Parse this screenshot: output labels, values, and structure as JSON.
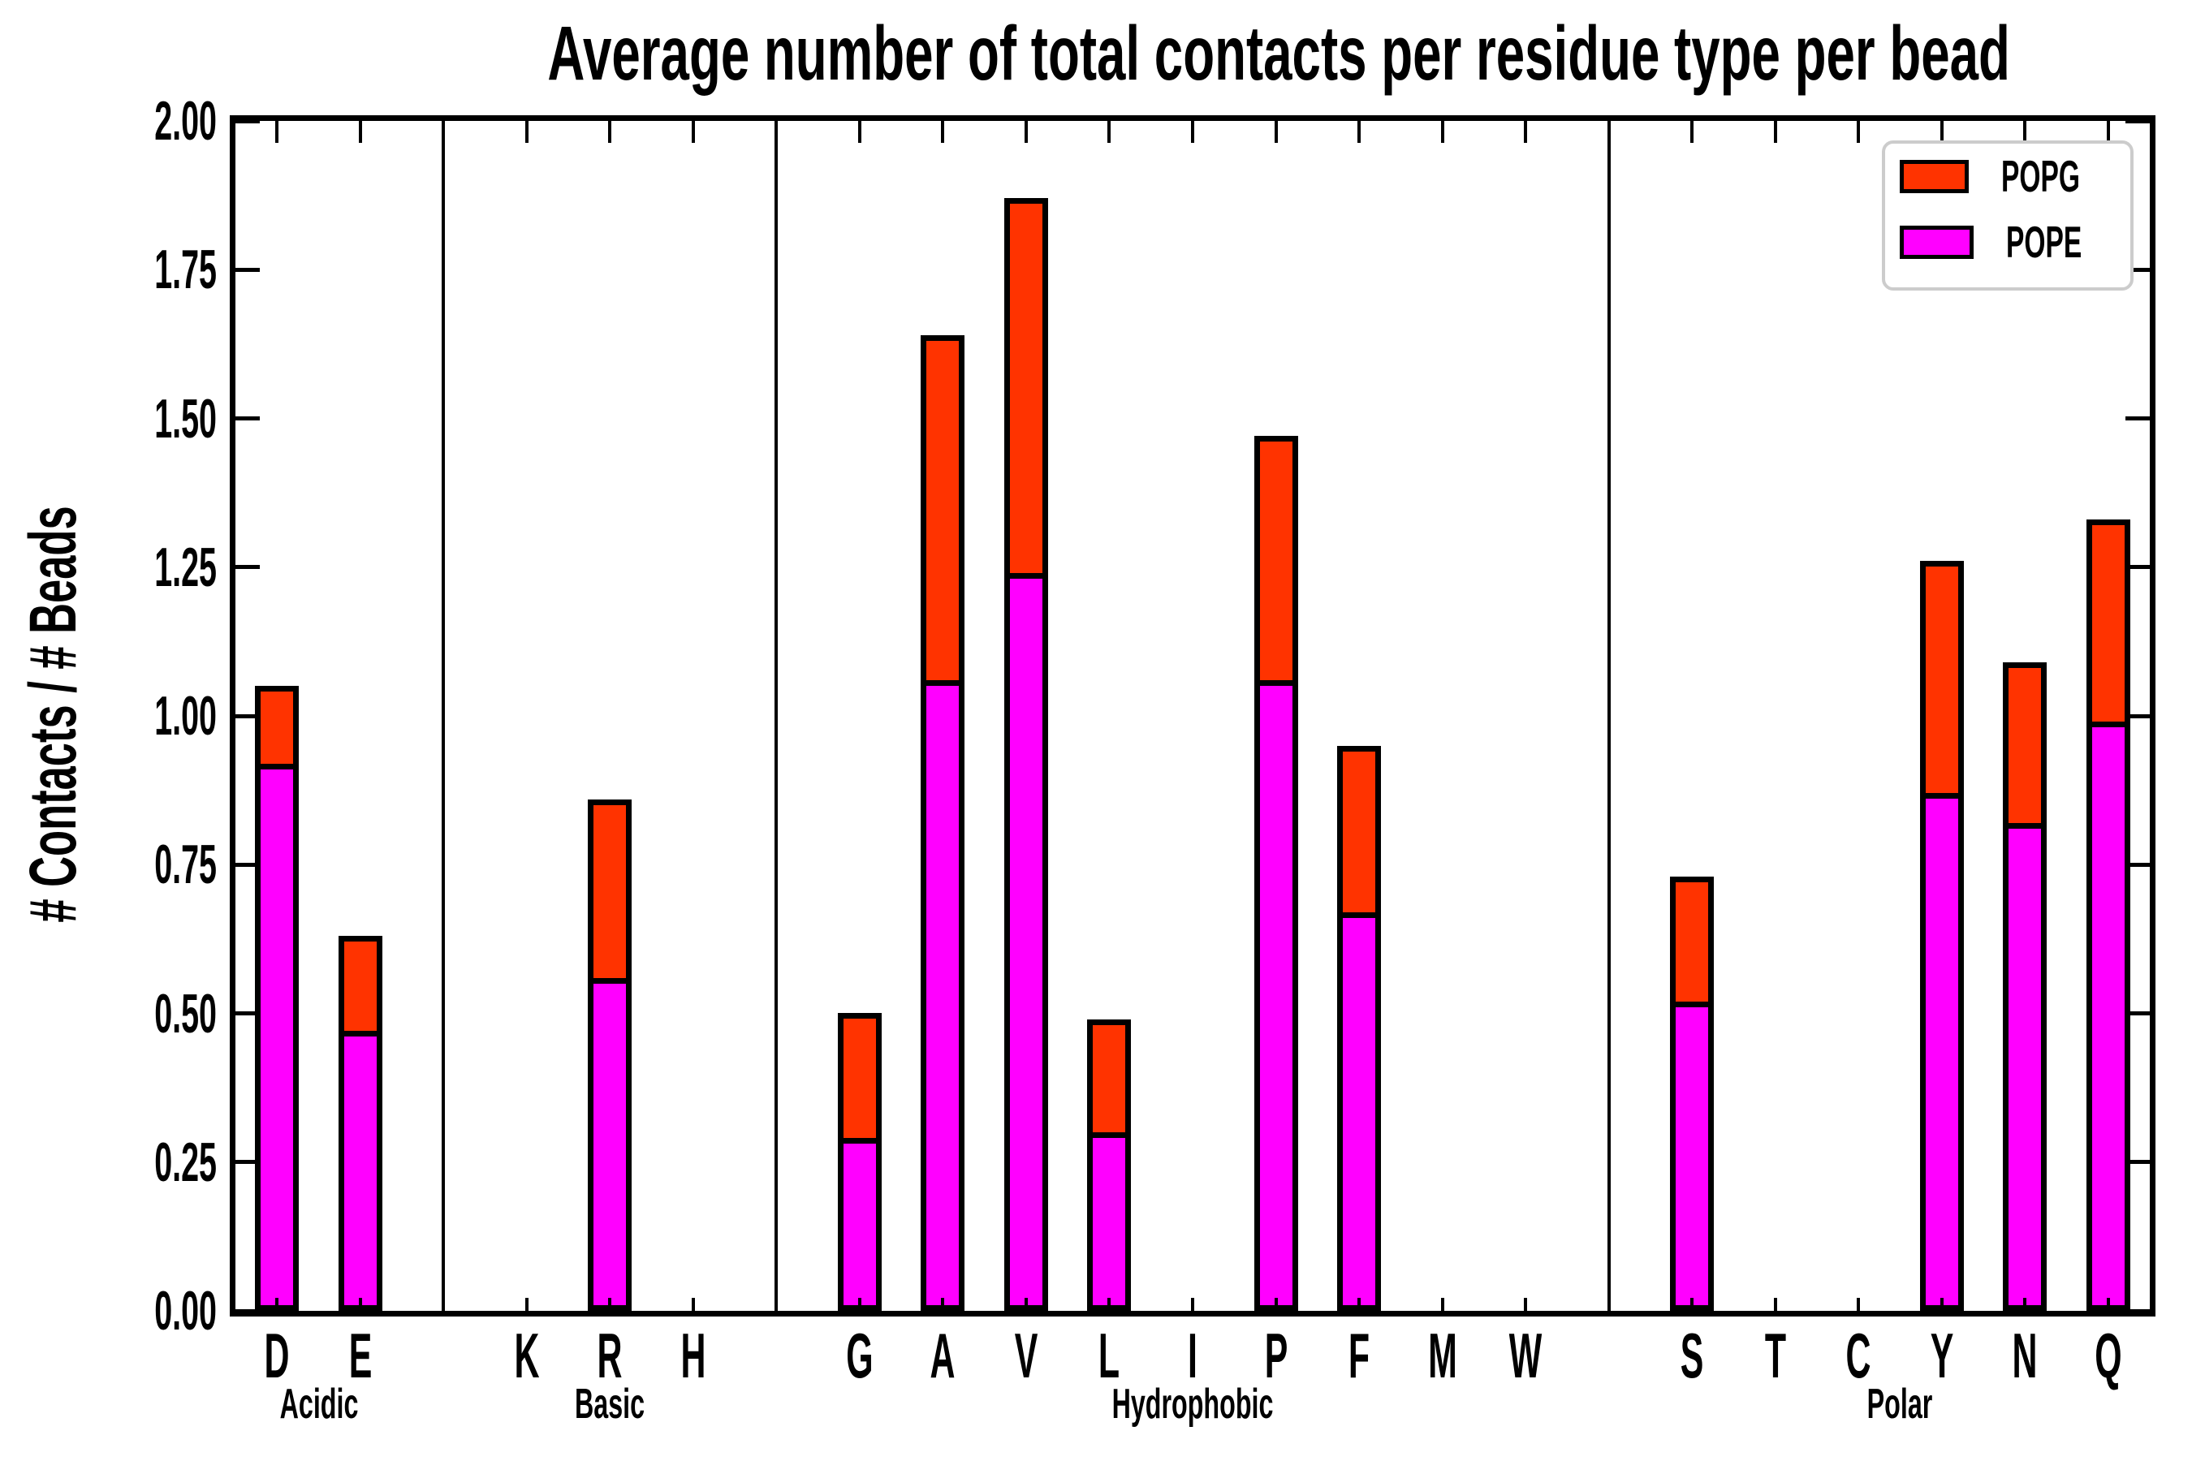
{
  "chart_data": {
    "type": "bar",
    "stacked": true,
    "title": "Average number of total contacts per residue type per bead",
    "ylabel": "# Contacts / # Beads",
    "xlabel": "",
    "ylim": [
      0,
      2
    ],
    "ytick_step": 0.25,
    "ytick_labels": [
      "0.00",
      "0.25",
      "0.50",
      "0.75",
      "1.00",
      "1.25",
      "1.50",
      "1.75",
      "2.00"
    ],
    "grid": false,
    "legend_position": "upper right",
    "legend": [
      {
        "label": "POPG",
        "color": "#FF3300"
      },
      {
        "label": "POPE",
        "color": "#FF00FF"
      }
    ],
    "bar_edge_color": "#000000",
    "categories": [
      "D",
      "E",
      "K",
      "R",
      "H",
      "G",
      "A",
      "V",
      "L",
      "I",
      "P",
      "F",
      "M",
      "W",
      "S",
      "T",
      "C",
      "Y",
      "N",
      "Q"
    ],
    "series": [
      {
        "name": "POPE",
        "color": "#FF00FF",
        "values": [
          0.92,
          0.47,
          0,
          0.56,
          0,
          0.29,
          1.06,
          1.24,
          0.3,
          0,
          1.06,
          0.67,
          0,
          0,
          0.52,
          0,
          0,
          0.87,
          0.82,
          0.99
        ]
      },
      {
        "name": "POPG",
        "color": "#FF3300",
        "values": [
          0.13,
          0.16,
          0,
          0.3,
          0,
          0.21,
          0.58,
          0.63,
          0.19,
          0,
          0.41,
          0.28,
          0,
          0,
          0.21,
          0,
          0,
          0.39,
          0.27,
          0.34
        ]
      }
    ],
    "totals": [
      1.05,
      0.63,
      0,
      0.86,
      0,
      0.5,
      1.64,
      1.87,
      0.49,
      0,
      1.47,
      0.95,
      0,
      0,
      0.73,
      0,
      0,
      1.26,
      1.09,
      1.33
    ],
    "groups": [
      {
        "label": "Acidic",
        "categories": [
          "D",
          "E"
        ]
      },
      {
        "label": "Basic",
        "categories": [
          "K",
          "R",
          "H"
        ]
      },
      {
        "label": "Hydrophobic",
        "categories": [
          "G",
          "A",
          "V",
          "L",
          "I",
          "P",
          "F",
          "M",
          "W"
        ]
      },
      {
        "label": "Polar",
        "categories": [
          "S",
          "T",
          "C",
          "Y",
          "N",
          "Q"
        ]
      }
    ],
    "layout": {
      "total_slots": 23,
      "category_slots": [
        0,
        1,
        3,
        4,
        5,
        7,
        8,
        9,
        10,
        11,
        12,
        13,
        14,
        15,
        17,
        18,
        19,
        20,
        21,
        22
      ],
      "separator_slots": [
        2,
        6,
        16
      ]
    }
  }
}
